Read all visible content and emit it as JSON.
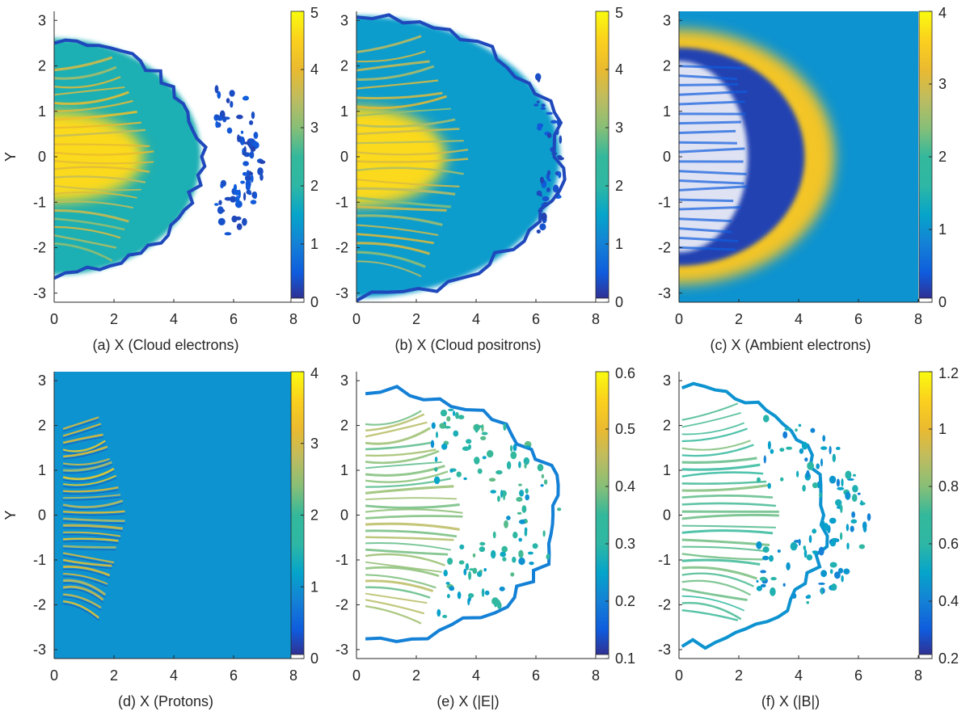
{
  "figure": {
    "y_label": "Y",
    "colormap": "parula"
  },
  "chart_data": [
    {
      "type": "heatmap",
      "caption": "(a) X (Cloud electrons)",
      "xlim": [
        0,
        8
      ],
      "ylim": [
        -3.2,
        3.2
      ],
      "x_ticks": [
        0,
        2,
        4,
        6,
        8
      ],
      "y_ticks": [
        -3,
        -2,
        -1,
        0,
        1,
        2,
        3
      ],
      "clim": [
        0,
        5
      ],
      "colorbar_ticks": [
        0,
        1,
        2,
        3,
        4,
        5
      ],
      "grid": false,
      "background": "#ffffff",
      "features": [
        {
          "kind": "cloud",
          "x0": 0,
          "x1": 4.9,
          "yh": 2.6,
          "level": 1.8
        },
        {
          "kind": "core",
          "x0": 0,
          "x1": 3.0,
          "yh": 1.0,
          "level": 4.6
        },
        {
          "kind": "filaments",
          "x0": 0,
          "x1": 3.4,
          "yh": 2.0,
          "count": 22,
          "level": 4.2
        },
        {
          "kind": "blobs",
          "x0": 5.4,
          "x1": 7.0,
          "yh": 1.8,
          "count": 80,
          "level": 0.4
        },
        {
          "kind": "rim",
          "x0": 0,
          "x1": 4.9,
          "yh": 2.6,
          "level": 0.3
        }
      ]
    },
    {
      "type": "heatmap",
      "caption": "(b) X (Cloud positrons)",
      "xlim": [
        0,
        8
      ],
      "ylim": [
        -3.2,
        3.2
      ],
      "x_ticks": [
        0,
        2,
        4,
        6,
        8
      ],
      "y_ticks": [
        -3,
        -2,
        -1,
        0,
        1,
        2,
        3
      ],
      "clim": [
        0,
        5
      ],
      "colorbar_ticks": [
        0,
        1,
        2,
        3,
        4,
        5
      ],
      "grid": false,
      "background": "#ffffff",
      "features": [
        {
          "kind": "cloud",
          "x0": 0,
          "x1": 6.8,
          "yh": 3.1,
          "level": 1.4
        },
        {
          "kind": "core",
          "x0": 0,
          "x1": 3.0,
          "yh": 1.1,
          "level": 4.6
        },
        {
          "kind": "filaments",
          "x0": 0,
          "x1": 3.8,
          "yh": 2.4,
          "count": 24,
          "level": 4.0
        },
        {
          "kind": "blobs",
          "x0": 6.0,
          "x1": 6.9,
          "yh": 1.8,
          "count": 40,
          "level": 0.4
        },
        {
          "kind": "rim",
          "x0": 0,
          "x1": 6.8,
          "yh": 3.1,
          "level": 0.3
        }
      ]
    },
    {
      "type": "heatmap",
      "caption": "(c) X (Ambient electrons)",
      "xlim": [
        0,
        8
      ],
      "ylim": [
        -3.2,
        3.2
      ],
      "x_ticks": [
        0,
        2,
        4,
        6,
        8
      ],
      "y_ticks": [
        -3,
        -2,
        -1,
        0,
        1,
        2,
        3
      ],
      "clim": [
        0,
        4
      ],
      "colorbar_ticks": [
        0,
        1,
        2,
        3,
        4
      ],
      "grid": false,
      "background_level": 1.0,
      "features": [
        {
          "kind": "shell",
          "x0": 0,
          "x1": 5.2,
          "yh": 2.8,
          "level": 3.4
        },
        {
          "kind": "cavity",
          "x0": 0,
          "x1": 4.2,
          "yh": 2.4,
          "level": 0.2
        },
        {
          "kind": "void",
          "x0": 0,
          "x1": 2.3,
          "yh": 2.1
        }
      ]
    },
    {
      "type": "heatmap",
      "caption": "(d) X (Protons)",
      "xlim": [
        0,
        8
      ],
      "ylim": [
        -3.2,
        3.2
      ],
      "x_ticks": [
        0,
        2,
        4,
        6,
        8
      ],
      "y_ticks": [
        -3,
        -2,
        -1,
        0,
        1,
        2,
        3
      ],
      "clim": [
        0,
        4
      ],
      "colorbar_ticks": [
        0,
        1,
        2,
        3,
        4
      ],
      "grid": false,
      "background_level": 1.0,
      "features": [
        {
          "kind": "streaks",
          "x0": 0.3,
          "x1": 2.4,
          "yh": 2.0,
          "count": 26,
          "level": 3.6,
          "dark": 0.2
        }
      ]
    },
    {
      "type": "heatmap",
      "caption": "(e) X (|E|)",
      "xlim": [
        0,
        8
      ],
      "ylim": [
        -3.2,
        3.2
      ],
      "x_ticks": [
        0,
        2,
        4,
        6,
        8
      ],
      "y_ticks": [
        -3,
        -2,
        -1,
        0,
        1,
        2,
        3
      ],
      "clim": [
        0.1,
        0.6
      ],
      "colorbar_ticks": [
        0.1,
        0.2,
        0.3,
        0.4,
        0.5,
        0.6
      ],
      "grid": false,
      "background": "#ffffff",
      "features": [
        {
          "kind": "filaments",
          "x0": 0.3,
          "x1": 3.6,
          "yh": 2.1,
          "count": 30,
          "level": 0.45
        },
        {
          "kind": "rim",
          "x0": 0.3,
          "x1": 6.8,
          "yh": 2.8,
          "level": 0.2
        },
        {
          "kind": "blobs",
          "x0": 2.5,
          "x1": 6.8,
          "yh": 2.4,
          "count": 120,
          "level": 0.3
        }
      ]
    },
    {
      "type": "heatmap",
      "caption": "(f) X (|B|)",
      "xlim": [
        0,
        8
      ],
      "ylim": [
        -3.2,
        3.2
      ],
      "x_ticks": [
        0,
        2,
        4,
        6,
        8
      ],
      "y_ticks": [
        -3,
        -2,
        -1,
        0,
        1,
        2,
        3
      ],
      "clim": [
        0.2,
        1.2
      ],
      "colorbar_ticks": [
        0.2,
        0.4,
        0.6,
        0.8,
        1,
        1.2
      ],
      "grid": false,
      "background": "#ffffff",
      "features": [
        {
          "kind": "filaments",
          "x0": 0.1,
          "x1": 3.4,
          "yh": 2.2,
          "count": 28,
          "level": 0.8
        },
        {
          "kind": "rim",
          "x0": 0.1,
          "x1": 4.9,
          "yh": 2.9,
          "level": 0.45
        },
        {
          "kind": "blobs",
          "x0": 2.6,
          "x1": 6.4,
          "yh": 2.2,
          "count": 110,
          "level": 0.5
        }
      ]
    }
  ]
}
